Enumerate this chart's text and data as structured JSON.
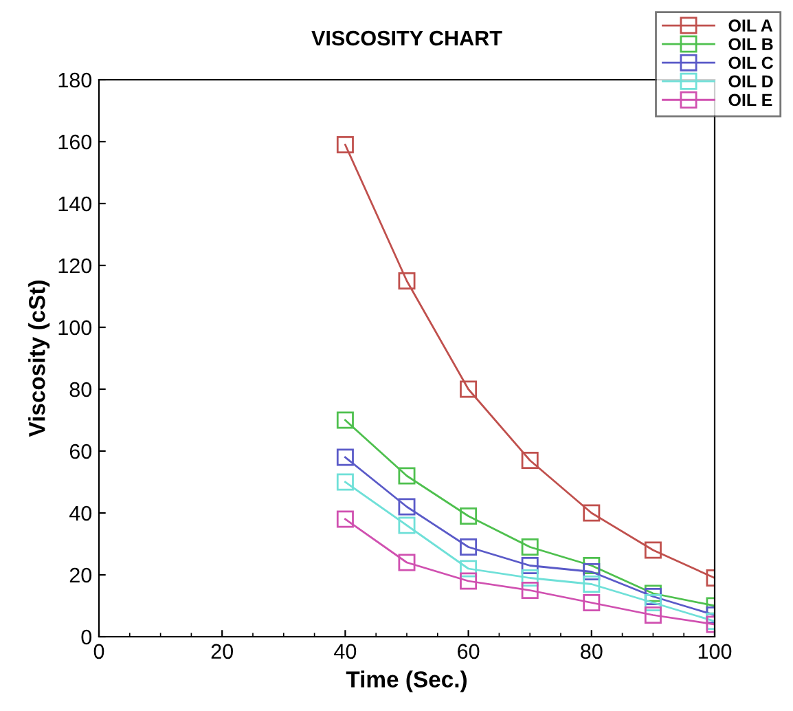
{
  "chart_data": {
    "type": "line",
    "title": "VISCOSITY CHART",
    "xlabel": "Time (Sec.)",
    "ylabel": "Viscosity (cSt)",
    "x": [
      40,
      50,
      60,
      70,
      80,
      90,
      100
    ],
    "series": [
      {
        "name": "OIL A",
        "color": "#c0504d",
        "values": [
          159,
          115,
          80,
          57,
          40,
          28,
          19
        ]
      },
      {
        "name": "OIL B",
        "color": "#4ec04e",
        "values": [
          70,
          52,
          39,
          29,
          23,
          14,
          10
        ]
      },
      {
        "name": "OIL C",
        "color": "#5a5ac8",
        "values": [
          58,
          42,
          29,
          23,
          21,
          13,
          7
        ]
      },
      {
        "name": "OIL D",
        "color": "#6fe0d8",
        "values": [
          50,
          36,
          22,
          19,
          17,
          11,
          5
        ]
      },
      {
        "name": "OIL E",
        "color": "#d050b0",
        "values": [
          38,
          24,
          18,
          15,
          11,
          7,
          4
        ]
      }
    ],
    "xlim": [
      0,
      100
    ],
    "xticks": [
      0,
      20,
      40,
      60,
      80,
      100
    ],
    "ylim": [
      0,
      180
    ],
    "yticks": [
      0,
      20,
      40,
      60,
      80,
      100,
      120,
      140,
      160,
      180
    ],
    "grid": false,
    "legend": "top right",
    "marker": "square",
    "line_style": "solid"
  }
}
